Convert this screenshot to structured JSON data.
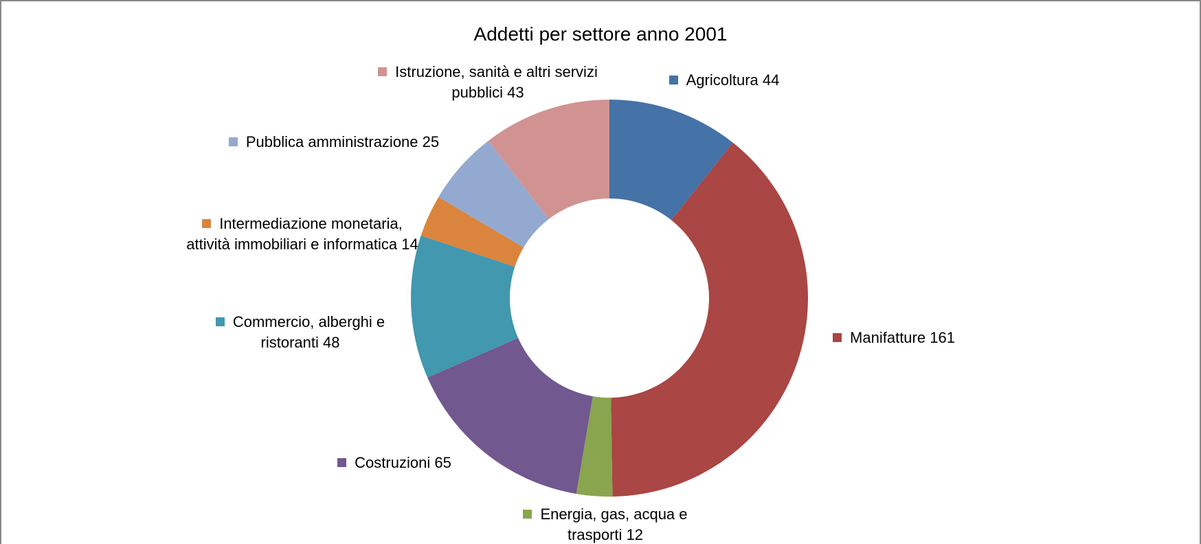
{
  "chart_data": {
    "type": "donut",
    "title": "Addetti per settore anno 2001",
    "categories": [
      "Agricoltura",
      "Manifatture",
      "Energia, gas, acqua e trasporti",
      "Costruzioni",
      "Commercio, alberghi e ristoranti",
      "Intermediazione monetaria, attività immobiliari e informatica",
      "Pubblica amministrazione",
      "Istruzione, sanità e altri servizi pubblici"
    ],
    "values": [
      44,
      161,
      12,
      65,
      48,
      14,
      25,
      43
    ],
    "colors": [
      "#4572a7",
      "#aa4643",
      "#89a54e",
      "#71588f",
      "#4198af",
      "#db843d",
      "#93a9cf",
      "#d19392"
    ]
  }
}
